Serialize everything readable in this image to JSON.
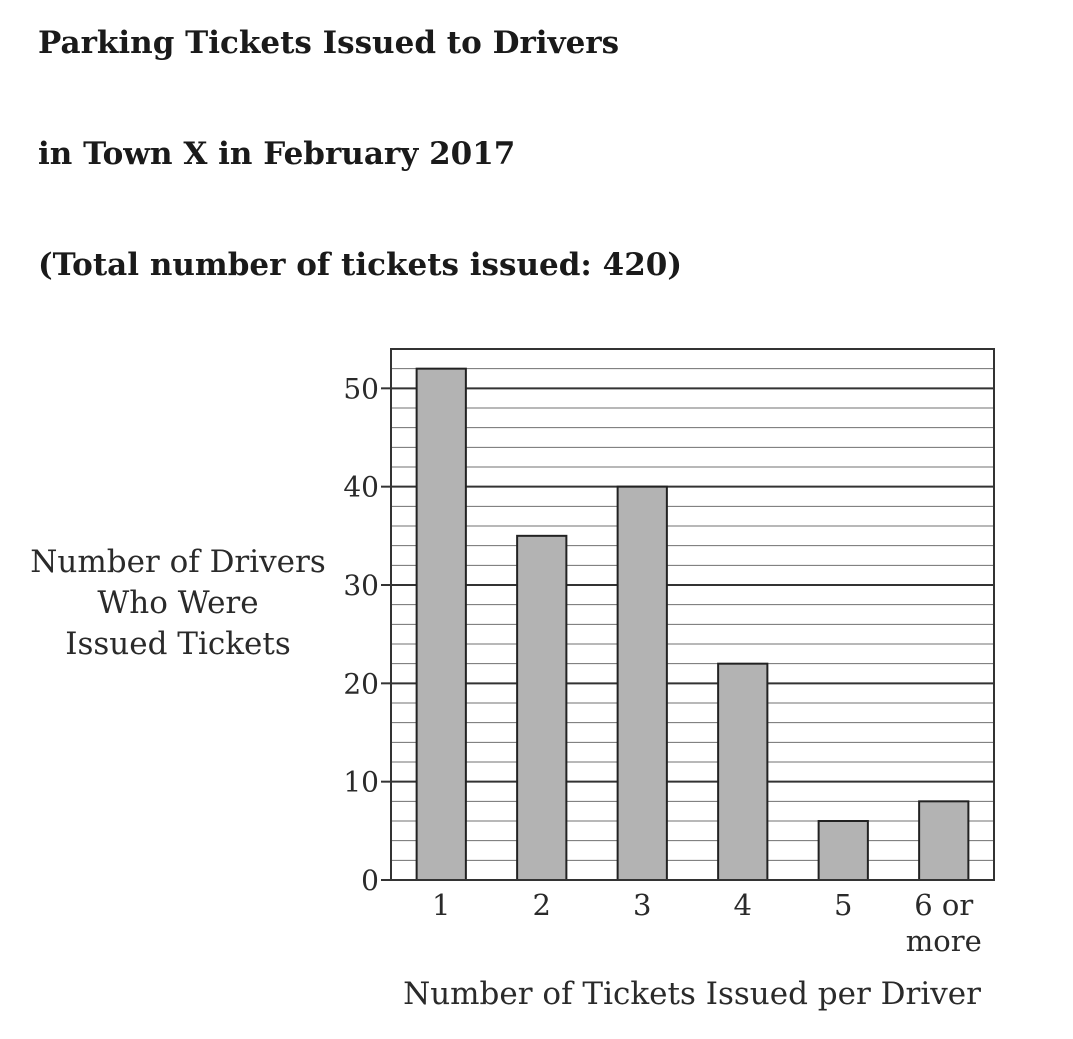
{
  "heading": {
    "line1": "Parking Tickets Issued to Drivers",
    "line2": "in Town X in February 2017",
    "line3": "(Total number of tickets issued: 420)"
  },
  "chart_data": {
    "type": "bar",
    "title": "Parking Tickets Issued to Drivers in Town X in February 2017",
    "subtitle": "(Total number of tickets issued: 420)",
    "categories": [
      "1",
      "2",
      "3",
      "4",
      "5",
      "6 or more"
    ],
    "category_lines": [
      [
        "1"
      ],
      [
        "2"
      ],
      [
        "3"
      ],
      [
        "4"
      ],
      [
        "5"
      ],
      [
        "6 or",
        "more"
      ]
    ],
    "values": [
      52,
      35,
      40,
      22,
      6,
      8
    ],
    "xlabel": "Number of Tickets Issued per Driver",
    "ylabel_lines": [
      "Number of Drivers",
      "Who Were",
      "Issued Tickets"
    ],
    "ylim": [
      0,
      54
    ],
    "yticks": [
      0,
      10,
      20,
      30,
      40,
      50
    ],
    "minor_grid_step": 2,
    "grid": true,
    "bar_color": "#b3b3b3",
    "bar_edge_color": "#222222",
    "grid_color": "#333333"
  }
}
